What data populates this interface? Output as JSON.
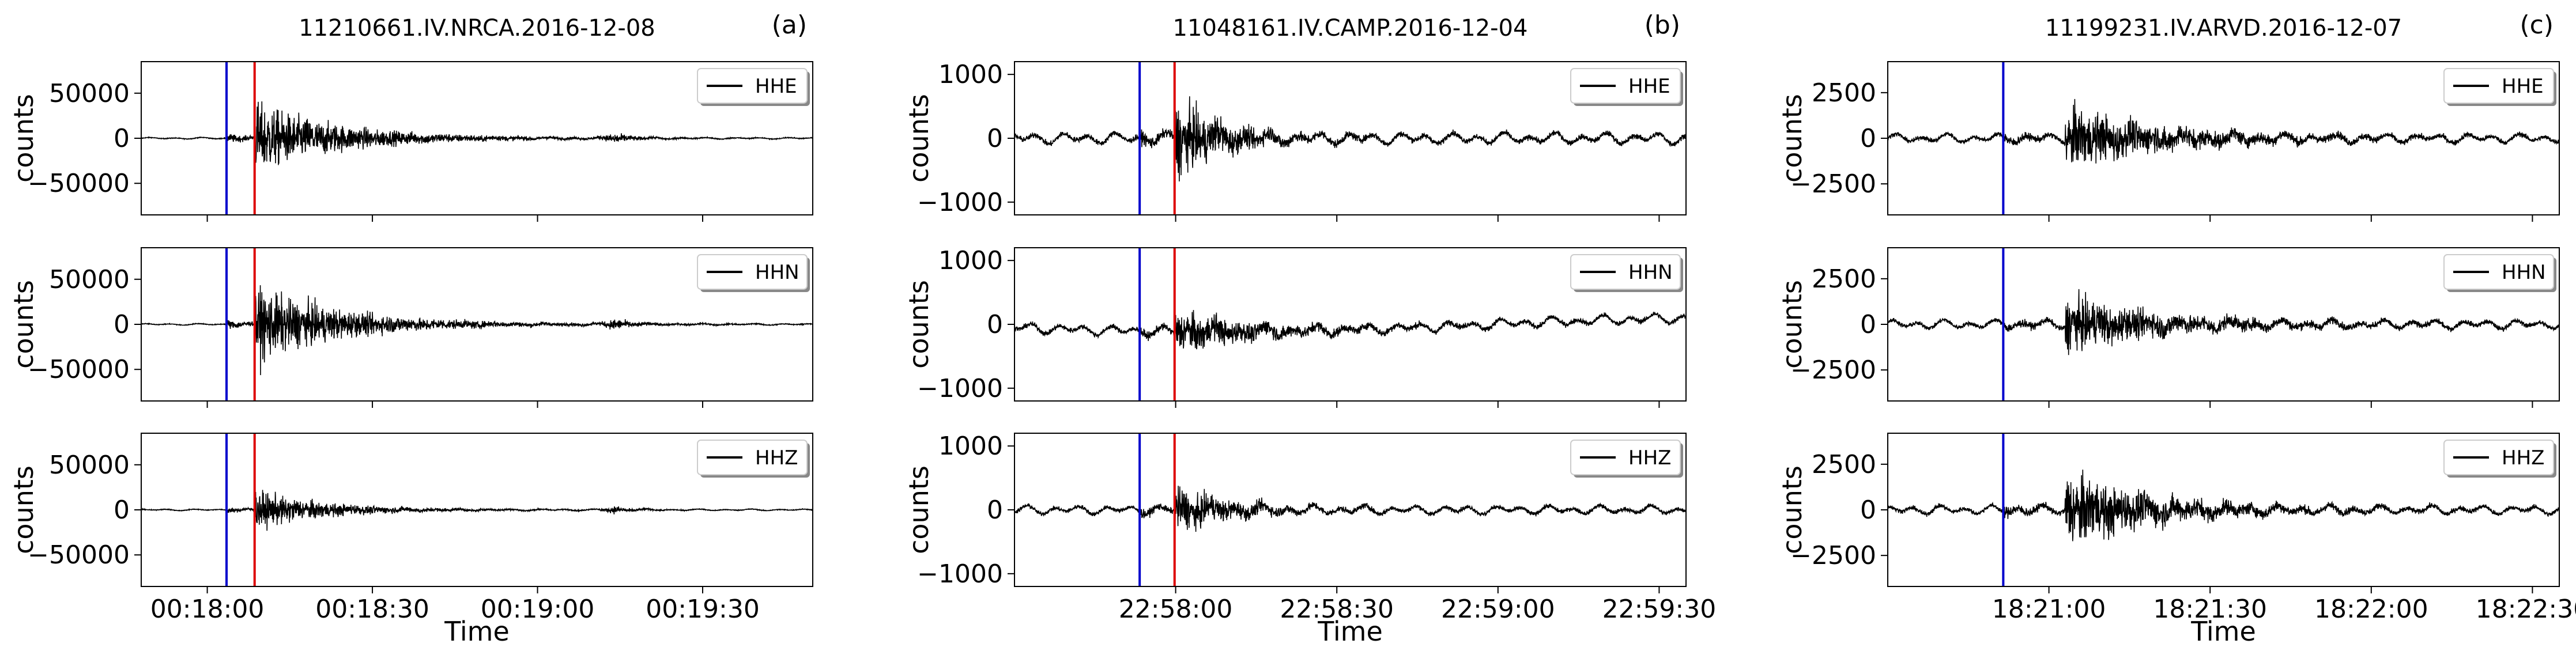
{
  "chart_data": [
    {
      "type": "line",
      "title": "11210661.IV.NRCA.2016-12-08",
      "tag": "(a)",
      "xlabel": "Time",
      "ylabel": "counts",
      "x_range_seconds": [
        1068,
        1190
      ],
      "x_ticks": [
        {
          "t": 1080,
          "label": "00:18:00"
        },
        {
          "t": 1110,
          "label": "00:18:30"
        },
        {
          "t": 1140,
          "label": "00:19:00"
        },
        {
          "t": 1170,
          "label": "00:19:30"
        }
      ],
      "ylim": [
        -85000,
        85000
      ],
      "y_ticks": [
        {
          "v": 50000,
          "label": "50000"
        },
        {
          "v": 0,
          "label": "0"
        },
        {
          "v": -50000,
          "label": "−50000"
        }
      ],
      "p_pick": 1083.5,
      "s_pick": 1088.6,
      "pick_colors": {
        "p": "#0000cc",
        "s": "#dd0000"
      },
      "series": [
        {
          "name": "HHE",
          "noise": 900,
          "peak": 78000,
          "decay_s": 16,
          "second_event": {
            "t": 1154,
            "amp": 12000
          }
        },
        {
          "name": "HHN",
          "noise": 900,
          "peak": 80000,
          "decay_s": 17,
          "second_event": {
            "t": 1154,
            "amp": 12000
          }
        },
        {
          "name": "HHZ",
          "noise": 900,
          "peak": 42000,
          "decay_s": 13,
          "second_event": {
            "t": 1154,
            "amp": 8000
          }
        }
      ]
    },
    {
      "type": "line",
      "title": "11048161.IV.CAMP.2016-12-04",
      "tag": "(b)",
      "xlabel": "Time",
      "ylabel": "counts",
      "x_range_seconds": [
        82650,
        82775
      ],
      "x_ticks": [
        {
          "t": 82680,
          "label": "22:58:00"
        },
        {
          "t": 82710,
          "label": "22:58:30"
        },
        {
          "t": 82740,
          "label": "22:59:00"
        },
        {
          "t": 82770,
          "label": "22:59:30"
        }
      ],
      "ylim": [
        -1200,
        1200
      ],
      "y_ticks": [
        {
          "v": 1000,
          "label": "1000"
        },
        {
          "v": 0,
          "label": "0"
        },
        {
          "v": -1000,
          "label": "−1000"
        }
      ],
      "p_pick": 82673.3,
      "s_pick": 82679.8,
      "pick_colors": {
        "p": "#0000cc",
        "s": "#dd0000"
      },
      "series": [
        {
          "name": "HHE",
          "noise": 90,
          "peak": 1150,
          "decay_s": 9,
          "drift": 0
        },
        {
          "name": "HHN",
          "noise": 80,
          "peak": 600,
          "decay_s": 14,
          "drift": 1
        },
        {
          "name": "HHZ",
          "noise": 70,
          "peak": 650,
          "decay_s": 10,
          "drift": 0
        }
      ]
    },
    {
      "type": "line",
      "title": "11199231.IV.ARVD.2016-12-07",
      "tag": "(c)",
      "xlabel": "Time",
      "ylabel": "counts",
      "x_range_seconds": [
        65630,
        65755
      ],
      "x_ticks": [
        {
          "t": 65660,
          "label": "18:21:00"
        },
        {
          "t": 65690,
          "label": "18:21:30"
        },
        {
          "t": 65720,
          "label": "18:22:00"
        },
        {
          "t": 65750,
          "label": "18:22:30"
        }
      ],
      "ylim": [
        -4200,
        4200
      ],
      "y_ticks": [
        {
          "v": 2500,
          "label": "2500"
        },
        {
          "v": 0,
          "label": "0"
        },
        {
          "v": -2500,
          "label": "−2500"
        }
      ],
      "p_pick": 65651.5,
      "s_pick": null,
      "pick_colors": {
        "p": "#0000cc",
        "s": "#dd0000"
      },
      "series": [
        {
          "name": "HHE",
          "noise": 250,
          "peak": 3300,
          "decay_s": 18,
          "burst_t": 65663
        },
        {
          "name": "HHN",
          "noise": 250,
          "peak": 2900,
          "decay_s": 18,
          "burst_t": 65663
        },
        {
          "name": "HHZ",
          "noise": 250,
          "peak": 4100,
          "decay_s": 16,
          "burst_t": 65663
        }
      ]
    }
  ]
}
